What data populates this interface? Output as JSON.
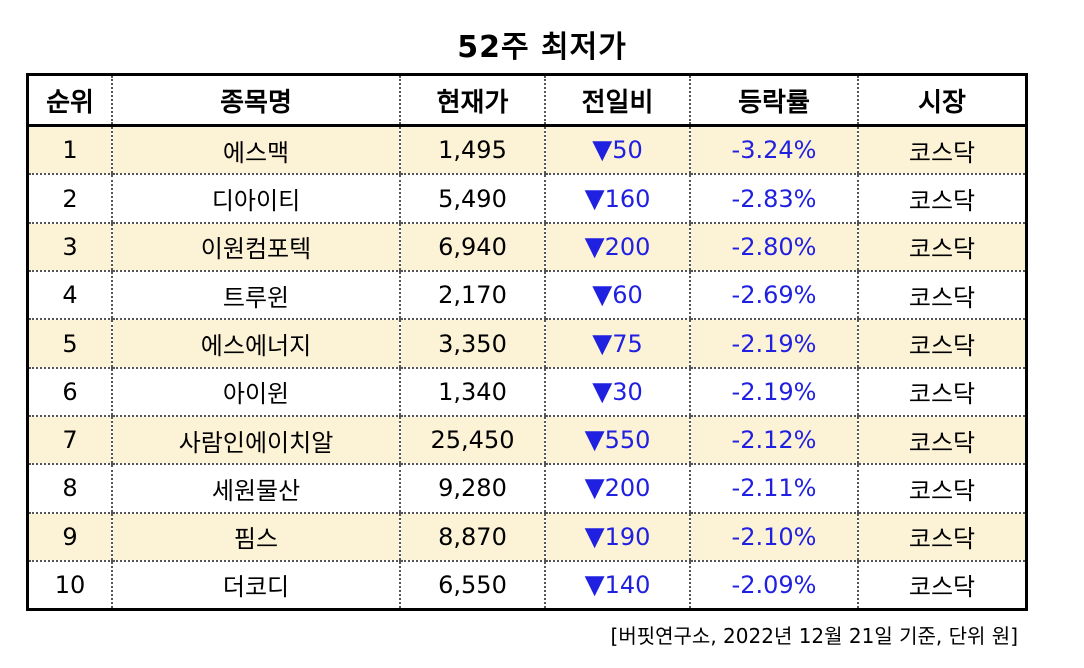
{
  "title": "52주 최저가",
  "headers": [
    "순위",
    "종목명",
    "현재가",
    "전일비",
    "등락률",
    "시장"
  ],
  "down_symbol": "▼",
  "colors": {
    "shaded_row": "#fcf2d6",
    "change_text": "#2020e0",
    "border": "#000000"
  },
  "rows": [
    {
      "rank": "1",
      "name": "에스맥",
      "price": "1,495",
      "change": "50",
      "rate": "-3.24%",
      "market": "코스닥"
    },
    {
      "rank": "2",
      "name": "디아이티",
      "price": "5,490",
      "change": "160",
      "rate": "-2.83%",
      "market": "코스닥"
    },
    {
      "rank": "3",
      "name": "이원컴포텍",
      "price": "6,940",
      "change": "200",
      "rate": "-2.80%",
      "market": "코스닥"
    },
    {
      "rank": "4",
      "name": "트루윈",
      "price": "2,170",
      "change": "60",
      "rate": "-2.69%",
      "market": "코스닥"
    },
    {
      "rank": "5",
      "name": "에스에너지",
      "price": "3,350",
      "change": "75",
      "rate": "-2.19%",
      "market": "코스닥"
    },
    {
      "rank": "6",
      "name": "아이윈",
      "price": "1,340",
      "change": "30",
      "rate": "-2.19%",
      "market": "코스닥"
    },
    {
      "rank": "7",
      "name": "사람인에이치알",
      "price": "25,450",
      "change": "550",
      "rate": "-2.12%",
      "market": "코스닥"
    },
    {
      "rank": "8",
      "name": "세원물산",
      "price": "9,280",
      "change": "200",
      "rate": "-2.11%",
      "market": "코스닥"
    },
    {
      "rank": "9",
      "name": "핌스",
      "price": "8,870",
      "change": "190",
      "rate": "-2.10%",
      "market": "코스닥"
    },
    {
      "rank": "10",
      "name": "더코디",
      "price": "6,550",
      "change": "140",
      "rate": "-2.09%",
      "market": "코스닥"
    }
  ],
  "footnote": "[버핏연구소, 2022년 12월 21일 기준, 단위 원]"
}
